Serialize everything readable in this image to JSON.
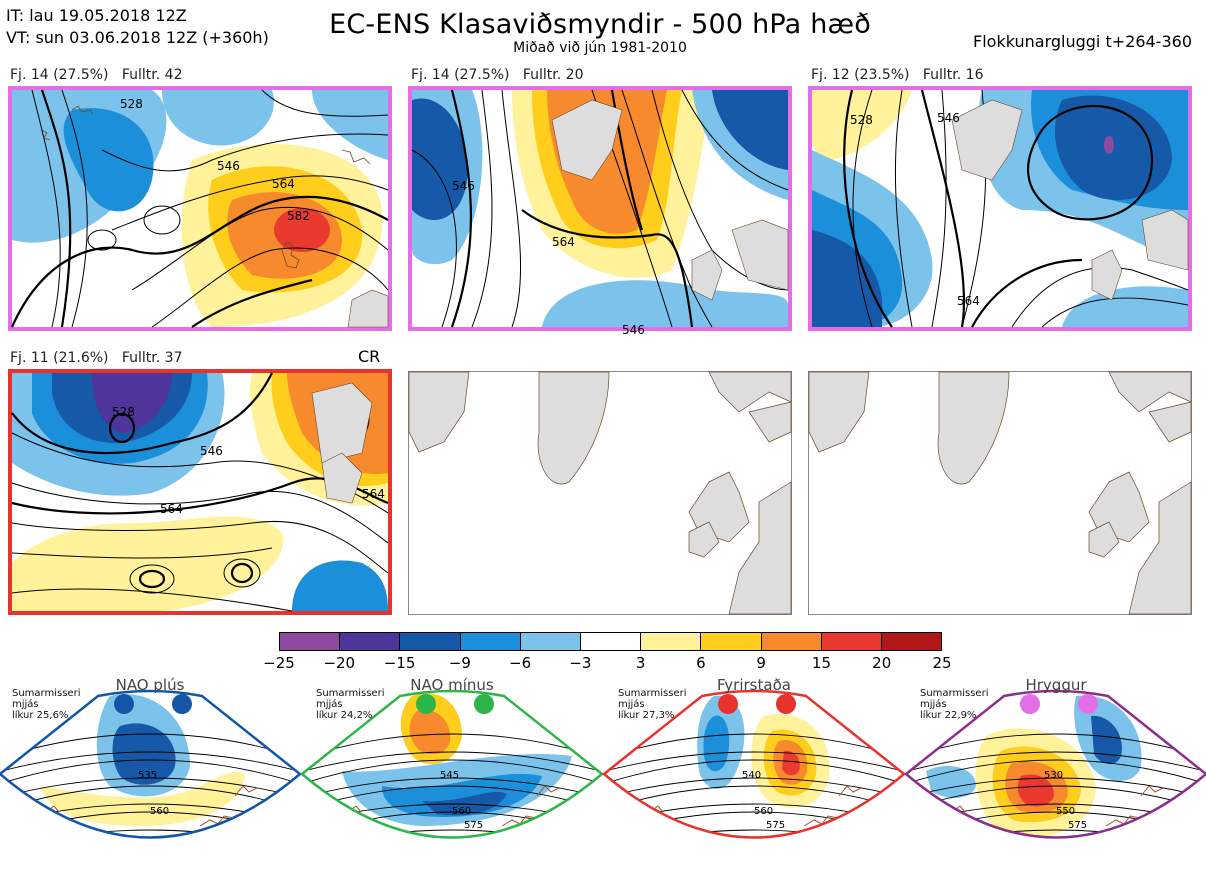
{
  "header": {
    "it": "IT: lau 19.05.2018 12Z",
    "vt": "VT: sun 03.06.2018 12Z  (+360h)",
    "title": "EC-ENS Klasaviðsmyndir - 500 hPa hæð",
    "subtitle": "Miðað við jún 1981-2010",
    "window": "Flokkunargluggi t+264-360"
  },
  "panels": [
    {
      "label": "Fj. 14 (27.5%)   Fulltr. 42",
      "border": "#e36ee8",
      "contours": [
        "528",
        "546",
        "564",
        "582"
      ]
    },
    {
      "label": "Fj. 14 (27.5%)   Fulltr. 20",
      "border": "#e36ee8",
      "contours": [
        "546",
        "564",
        "546"
      ]
    },
    {
      "label": "Fj. 12 (23.5%)   Fulltr. 16",
      "border": "#e36ee8",
      "contours": [
        "528",
        "546",
        "564"
      ]
    },
    {
      "label": "Fj. 11 (21.6%)   Fulltr. 37",
      "border": "#e8322d",
      "tag": "CR",
      "contours": [
        "528",
        "546",
        "564",
        "564"
      ]
    }
  ],
  "colorbar": {
    "colors": [
      "#8e4aa0",
      "#4f3499",
      "#1659a8",
      "#1b8fd9",
      "#7cc3ec",
      "#ffffff",
      "#fff29a",
      "#ffce1d",
      "#f68a2c",
      "#ea3a2f",
      "#b01717"
    ],
    "ticks": [
      "−25",
      "−20",
      "−15",
      "−9",
      "−6",
      "−3",
      "3",
      "6",
      "9",
      "15",
      "20",
      "25"
    ]
  },
  "regimes": [
    {
      "name": "NAO plús",
      "season": "Sumarmisseri",
      "type": "mjjás",
      "likelihood": "líkur 25,6%",
      "dot_color": "#1456a6",
      "frame": "#1456a6",
      "contours": [
        "535",
        "560"
      ]
    },
    {
      "name": "NAO mínus",
      "season": "Sumarmisseri",
      "type": "mjjás",
      "likelihood": "líkur 24,2%",
      "dot_color": "#2db54a",
      "frame": "#2db54a",
      "contours": [
        "545",
        "560",
        "575"
      ]
    },
    {
      "name": "Fyrirstaða",
      "season": "Sumarmisseri",
      "type": "mjjás",
      "likelihood": "líkur 27,3%",
      "dot_color": "#e8322d",
      "frame": "#e8322d",
      "contours": [
        "540",
        "560",
        "575"
      ]
    },
    {
      "name": "Hryggur",
      "season": "Sumarmisseri",
      "type": "mjjás",
      "likelihood": "líkur 22,9%",
      "dot_color": "#e36ee8",
      "frame": "#8c2e8c",
      "contours": [
        "530",
        "550",
        "575"
      ]
    }
  ]
}
